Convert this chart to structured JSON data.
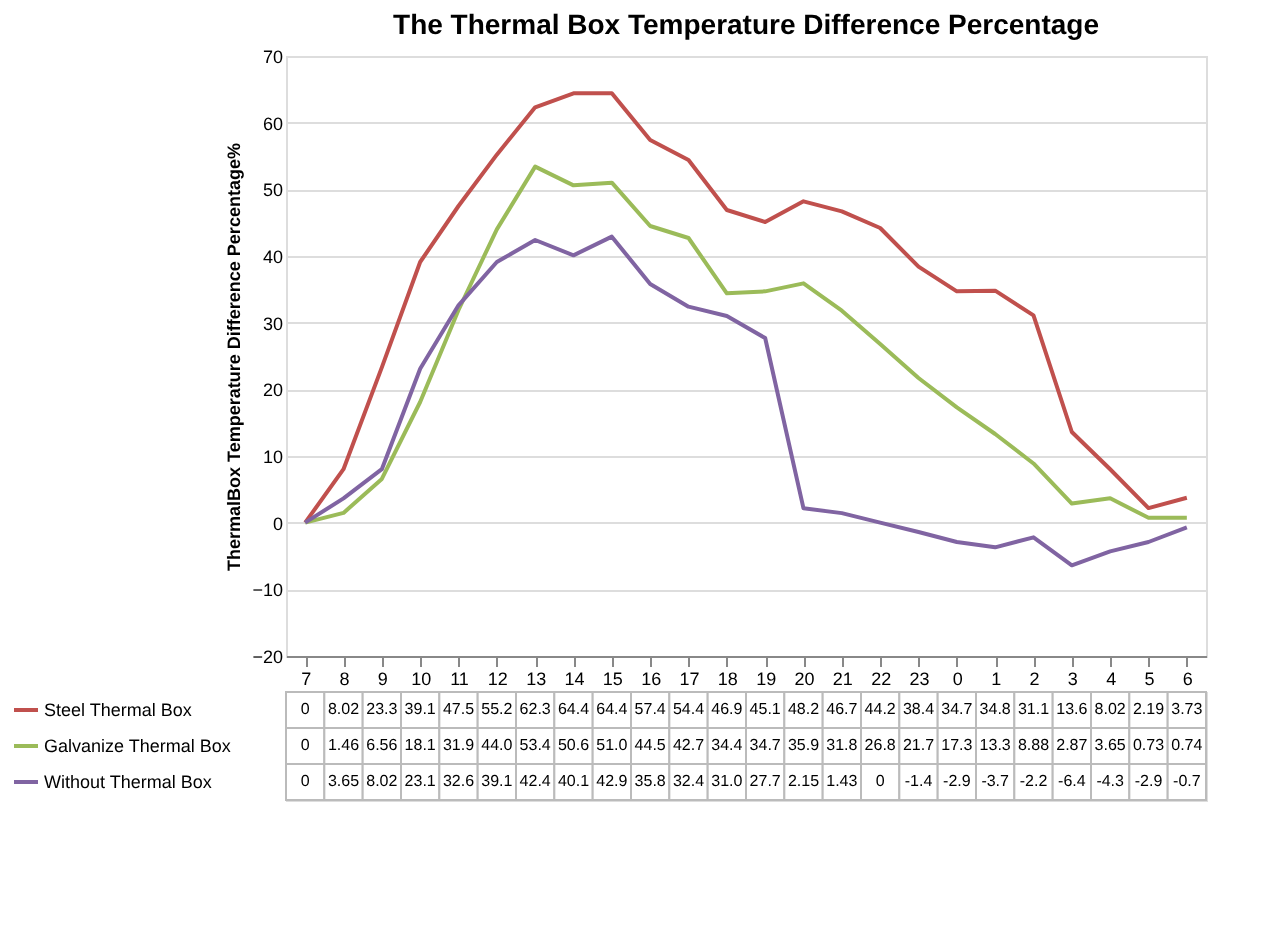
{
  "chart_data": {
    "type": "line",
    "title": "The Thermal Box Temperature Difference Percentage",
    "ylabel": "ThermalBox Temperature Difference Percentage%",
    "categories": [
      "7",
      "8",
      "9",
      "10",
      "11",
      "12",
      "13",
      "14",
      "15",
      "16",
      "17",
      "18",
      "19",
      "20",
      "21",
      "22",
      "23",
      "0",
      "1",
      "2",
      "3",
      "4",
      "5",
      "6"
    ],
    "ylim": [
      -20,
      70
    ],
    "yticks": [
      -20,
      -10,
      0,
      10,
      20,
      30,
      40,
      50,
      60,
      70
    ],
    "grid": "y",
    "legend": "bottom",
    "marker": "none",
    "line_style": "solid",
    "series": [
      {
        "name": "Steel Thermal Box",
        "color": "#c0504d",
        "values": [
          0,
          8.02,
          23.3,
          39.1,
          47.5,
          55.2,
          62.3,
          64.4,
          64.4,
          57.4,
          54.4,
          46.9,
          45.1,
          48.2,
          46.7,
          44.2,
          38.4,
          34.7,
          34.8,
          31.1,
          13.6,
          8.02,
          2.19,
          3.73
        ],
        "value_labels": [
          "0",
          "8.02",
          "23.3",
          "39.1",
          "47.5",
          "55.2",
          "62.3",
          "64.4",
          "64.4",
          "57.4",
          "54.4",
          "46.9",
          "45.1",
          "48.2",
          "46.7",
          "44.2",
          "38.4",
          "34.7",
          "34.8",
          "31.1",
          "13.6",
          "8.02",
          "2.19",
          "3.73"
        ]
      },
      {
        "name": "Galvanize Thermal Box",
        "color": "#9bbb59",
        "values": [
          0,
          1.46,
          6.56,
          18.1,
          31.9,
          44.0,
          53.4,
          50.6,
          51.0,
          44.5,
          42.7,
          34.4,
          34.7,
          35.9,
          31.8,
          26.8,
          21.7,
          17.3,
          13.3,
          8.88,
          2.87,
          3.65,
          0.73,
          0.74
        ],
        "value_labels": [
          "0",
          "1.46",
          "6.56",
          "18.1",
          "31.9",
          "44.0",
          "53.4",
          "50.6",
          "51.0",
          "44.5",
          "42.7",
          "34.4",
          "34.7",
          "35.9",
          "31.8",
          "26.8",
          "21.7",
          "17.3",
          "13.3",
          "8.88",
          "2.87",
          "3.65",
          "0.73",
          "0.74"
        ]
      },
      {
        "name": "Without Thermal Box",
        "color": "#8064a2",
        "values": [
          0,
          3.65,
          8.02,
          23.1,
          32.6,
          39.1,
          42.4,
          40.1,
          42.9,
          35.8,
          32.4,
          31.0,
          27.7,
          2.15,
          1.43,
          0,
          -1.4,
          -2.9,
          -3.7,
          -2.2,
          -6.4,
          -4.3,
          -2.9,
          -0.7
        ],
        "value_labels": [
          "0",
          "3.65",
          "8.02",
          "23.1",
          "32.6",
          "39.1",
          "42.4",
          "40.1",
          "42.9",
          "35.8",
          "32.4",
          "31.0",
          "27.7",
          "2.15",
          "1.43",
          "0",
          "-1.4",
          "-2.9",
          "-3.7",
          "-2.2",
          "-6.4",
          "-4.3",
          "-2.9",
          "-0.7"
        ]
      }
    ]
  }
}
